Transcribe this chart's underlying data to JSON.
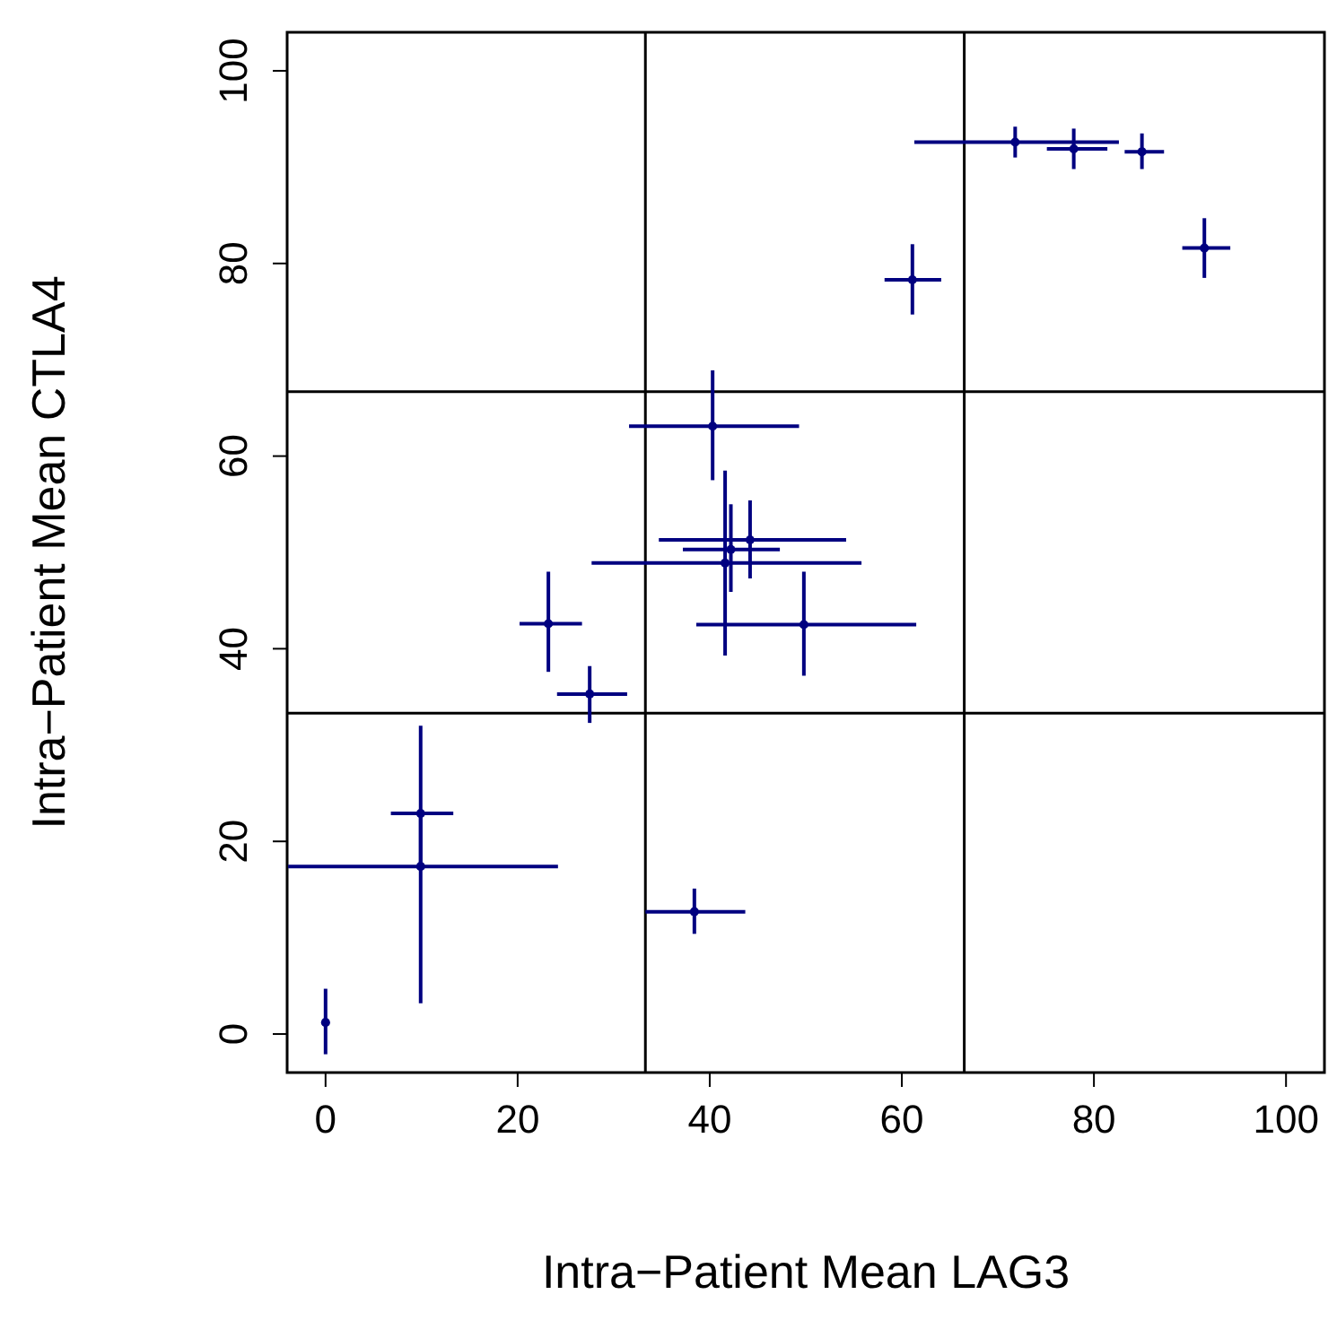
{
  "chart_data": {
    "type": "scatter",
    "xlabel": "Intra−Patient Mean LAG3",
    "ylabel": "Intra−Patient Mean CTLA4",
    "marker": "circle",
    "grid": false,
    "color": "#000080",
    "xlim": [
      -4,
      104
    ],
    "ylim": [
      -4,
      104
    ],
    "xticks": [
      0,
      20,
      40,
      60,
      80,
      100
    ],
    "yticks": [
      0,
      20,
      40,
      60,
      80,
      100
    ],
    "x": [
      40.3,
      41.6,
      42.2,
      44.2,
      49.8,
      23.2,
      27.5,
      9.9,
      9.9,
      0,
      38.4,
      61.1,
      71.8,
      77.9,
      85.0,
      91.5
    ],
    "values": [
      63.1,
      48.9,
      50.3,
      51.3,
      42.5,
      42.6,
      35.3,
      22.9,
      17.4,
      1.2,
      12.7,
      78.3,
      92.6,
      91.9,
      91.6,
      81.6
    ],
    "errors": [
      [
        57.5,
        68.9
      ],
      [
        39.3,
        58.5
      ],
      [
        45.9,
        55.0
      ],
      [
        47.3,
        55.4
      ],
      [
        37.2,
        48.0
      ],
      [
        37.6,
        48.0
      ],
      [
        32.3,
        38.2
      ],
      [
        17.4,
        32.0
      ],
      [
        3.2,
        22.9
      ],
      [
        -2.1,
        4.7
      ],
      [
        10.4,
        15.1
      ],
      [
        74.7,
        82.0
      ],
      [
        91.0,
        94.2
      ],
      [
        89.8,
        94.0
      ],
      [
        89.8,
        93.5
      ],
      [
        78.5,
        84.7
      ]
    ],
    "xerrors": [
      [
        31.6,
        49.3
      ],
      [
        27.7,
        55.8
      ],
      [
        37.2,
        47.3
      ],
      [
        34.7,
        54.2
      ],
      [
        38.6,
        61.5
      ],
      [
        20.2,
        26.7
      ],
      [
        24.1,
        31.4
      ],
      [
        6.8,
        13.3
      ],
      [
        -3.9,
        24.2
      ],
      null,
      [
        33.3,
        43.7
      ],
      [
        58.2,
        64.1
      ],
      [
        61.3,
        82.6
      ],
      [
        75.1,
        81.4
      ],
      [
        83.2,
        87.3
      ],
      [
        89.2,
        94.2
      ]
    ],
    "ref_lines": [
      {
        "axis": "x",
        "value": 33.3,
        "color": "#000000"
      },
      {
        "axis": "x",
        "value": 66.5,
        "color": "#000000"
      },
      {
        "axis": "y",
        "value": 33.3,
        "color": "#000000"
      },
      {
        "axis": "y",
        "value": 66.7,
        "color": "#000000"
      }
    ]
  }
}
